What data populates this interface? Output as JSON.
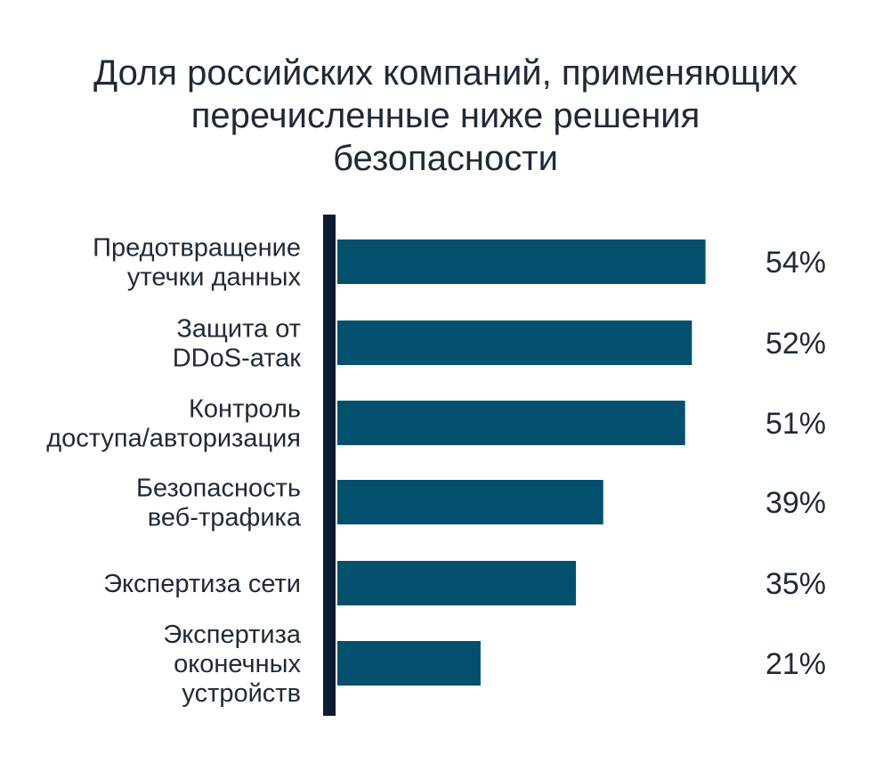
{
  "chart_data": {
    "type": "bar",
    "orientation": "horizontal",
    "title_lines": [
      "Доля российских компаний, применяющих",
      "перечисленные ниже решения",
      "безопасности"
    ],
    "categories": [
      [
        "Предотвращение",
        "утечки данных"
      ],
      [
        "Защита от",
        "DDoS-атак"
      ],
      [
        "Контроль",
        "доступа/авторизация"
      ],
      [
        "Безопасность",
        "веб-трафика"
      ],
      [
        "Экспертиза сети"
      ],
      [
        "Экспертиза",
        "оконечных",
        "устройств"
      ]
    ],
    "values": [
      54,
      52,
      51,
      39,
      35,
      21
    ],
    "value_labels": [
      "54%",
      "52%",
      "51%",
      "39%",
      "35%",
      "21%"
    ],
    "xlim": [
      0,
      100
    ],
    "grid": false,
    "colors": {
      "bar": "#02506e",
      "axis": "#0d1e33",
      "text": "#1f2a36"
    }
  }
}
